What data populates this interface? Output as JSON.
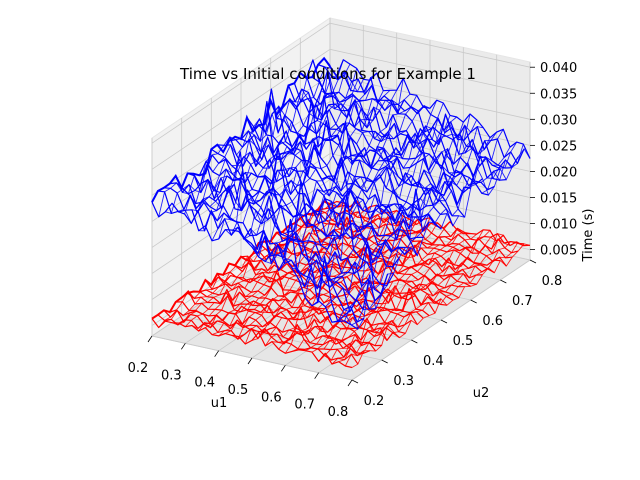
{
  "chart_data": {
    "type": "surface3d",
    "title": "Time vs Initial conditions for Example 1",
    "xlabel": "u1",
    "ylabel": "u2",
    "zlabel": "Time (s)",
    "x_ticks": [
      "0.2",
      "0.3",
      "0.4",
      "0.5",
      "0.6",
      "0.7",
      "0.8"
    ],
    "y_ticks": [
      "0.2",
      "0.3",
      "0.4",
      "0.5",
      "0.6",
      "0.7",
      "0.8"
    ],
    "z_ticks": [
      "0.005",
      "0.010",
      "0.015",
      "0.020",
      "0.025",
      "0.030",
      "0.035",
      "0.040"
    ],
    "xlim": [
      0.2,
      0.8
    ],
    "ylim": [
      0.2,
      0.8
    ],
    "zlim": [
      0.003,
      0.041
    ],
    "grid": true,
    "series": [
      {
        "color": "#0000ff",
        "approx_range": [
          0.014,
          0.036
        ],
        "trend": "decreases toward u1≈0.8,u2≈0.2 then rises"
      },
      {
        "color": "#ff0000",
        "approx_range": [
          0.004,
          0.011
        ],
        "trend": "flat noisy around 0.006"
      }
    ]
  }
}
